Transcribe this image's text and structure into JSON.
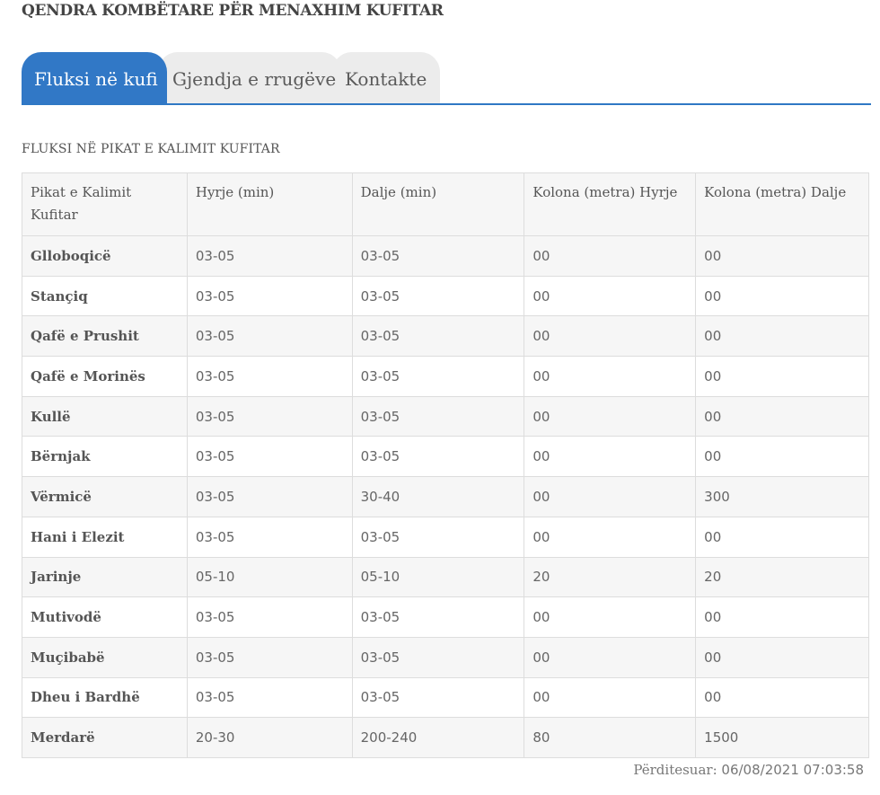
{
  "header": {
    "title": "QENDRA KOMBËTARE PËR MENAXHIM KUFITAR"
  },
  "tabs": [
    {
      "label": "Fluksi në kufi",
      "active": true
    },
    {
      "label": "Gjendja e rrugëve",
      "active": false
    },
    {
      "label": "Kontakte",
      "active": false
    }
  ],
  "section": {
    "title": "FLUKSI NË PIKAT E KALIMIT KUFITAR"
  },
  "table": {
    "headers": [
      "Pikat e Kalimit Kufitar",
      "Hyrje (min)",
      "Dalje (min)",
      "Kolona (metra) Hyrje",
      "Kolona (metra) Dalje"
    ],
    "rows": [
      [
        "Glloboqicë",
        "03-05",
        "03-05",
        "00",
        "00"
      ],
      [
        "Stançiq",
        "03-05",
        "03-05",
        "00",
        "00"
      ],
      [
        "Qafë e Prushit",
        "03-05",
        "03-05",
        "00",
        "00"
      ],
      [
        "Qafë e Morinës",
        "03-05",
        "03-05",
        "00",
        "00"
      ],
      [
        "Kullë",
        "03-05",
        "03-05",
        "00",
        "00"
      ],
      [
        "Bërnjak",
        "03-05",
        "03-05",
        "00",
        "00"
      ],
      [
        "Vërmicë",
        "03-05",
        "30-40",
        "00",
        "300"
      ],
      [
        "Hani i Elezit",
        "03-05",
        "03-05",
        "00",
        "00"
      ],
      [
        "Jarinje",
        "05-10",
        "05-10",
        "20",
        "20"
      ],
      [
        "Mutivodë",
        "03-05",
        "03-05",
        "00",
        "00"
      ],
      [
        "Muçibabë",
        "03-05",
        "03-05",
        "00",
        "00"
      ],
      [
        "Dheu i Bardhë",
        "03-05",
        "03-05",
        "00",
        "00"
      ],
      [
        "Merdarë",
        "20-30",
        "200-240",
        "80",
        "1500"
      ]
    ]
  },
  "footer": {
    "updated_label": "Përditesuar:",
    "updated_value": "06/08/2021 07:03:58"
  },
  "colors": {
    "accent": "#3178c6",
    "tab_inactive": "#ececec",
    "border": "#dddddd",
    "stripe": "#f6f6f6"
  }
}
